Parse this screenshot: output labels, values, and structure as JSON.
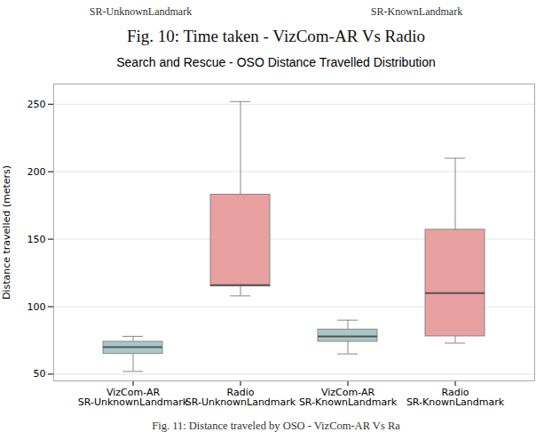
{
  "chart_data": {
    "type": "box",
    "title": "Search and Rescue - OSO Distance Travelled Distribution",
    "ylabel": "Distance travelled (meters)",
    "categories": [
      "VizCom-AR\nSR-UnknownLandmark",
      "Radio\nSR-UnknownLandmark",
      "VizCom-AR\nSR-KnownLandmark",
      "Radio\nSR-KnownLandmark"
    ],
    "whisker_low": [
      52,
      108,
      65,
      73
    ],
    "q1": [
      65,
      115,
      74,
      78
    ],
    "median": [
      70,
      116,
      78,
      110
    ],
    "q3": [
      74,
      183,
      83,
      157
    ],
    "whisker_high": [
      78,
      252,
      90,
      210
    ],
    "colors": [
      "#a8c8c8",
      "#e8a0a0",
      "#a8c8c8",
      "#e8a0a0"
    ],
    "ylim": [
      45,
      265
    ],
    "yticks": [
      50,
      100,
      150,
      200,
      250
    ],
    "grid": true,
    "annotations": [
      "SR-UnknownLandmark",
      "SR-KnownLandmark",
      "Fig.  10:  Time  taken  -  VizCom-AR  Vs  Radio",
      "Fig. 11: Distance traveled by OSO - VizCom-AR Vs Ra"
    ]
  }
}
